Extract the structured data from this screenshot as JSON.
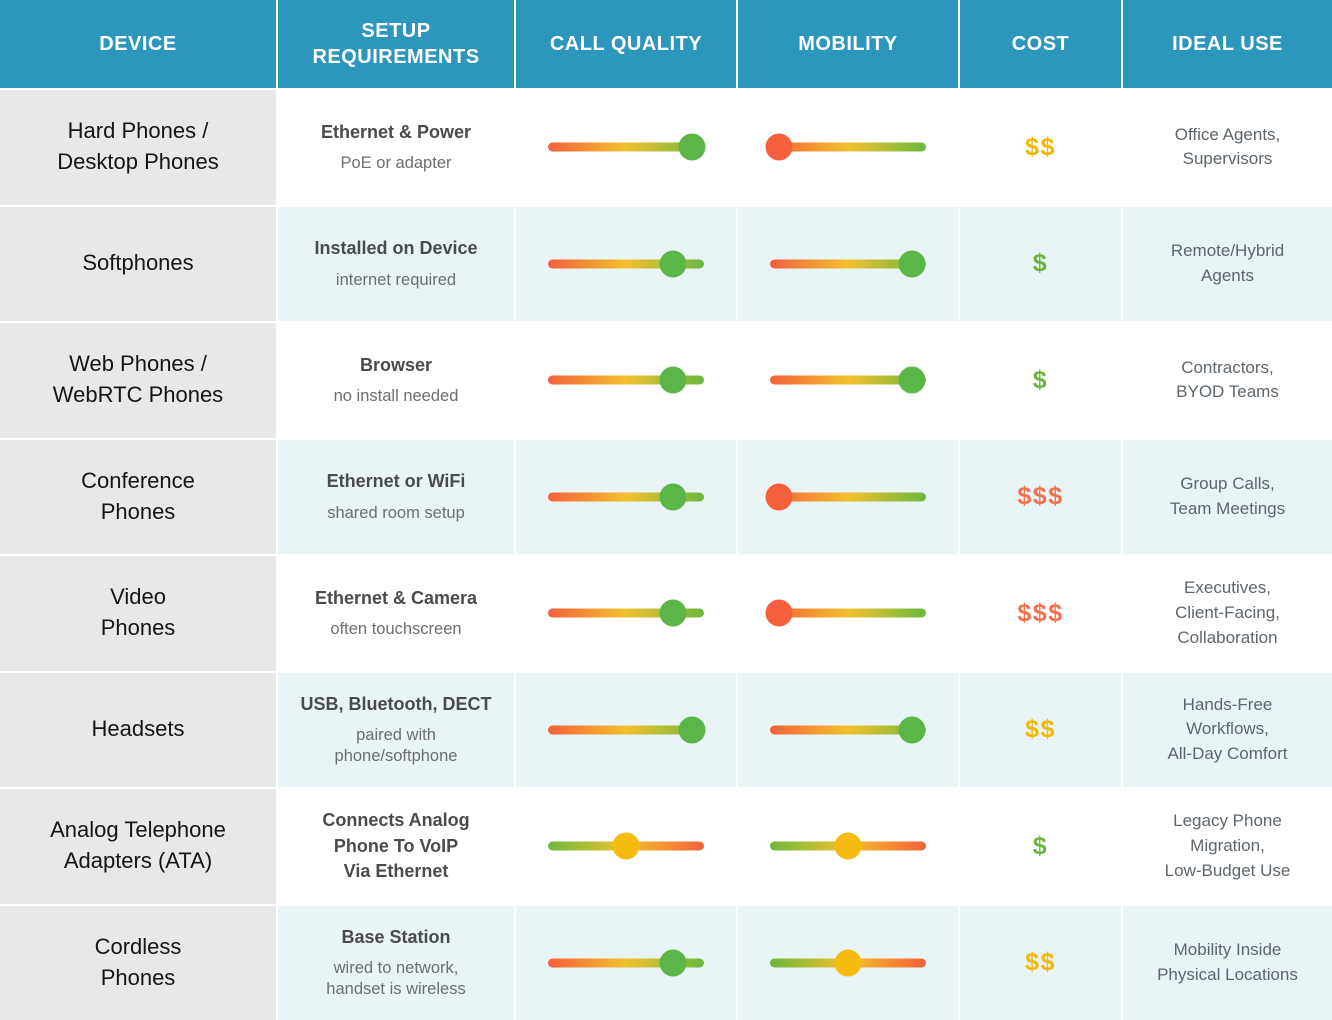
{
  "header": {
    "columns": [
      "DEVICE",
      "SETUP\nREQUIREMENTS",
      "CALL QUALITY",
      "MOBILITY",
      "COST",
      "IDEAL USE"
    ]
  },
  "colors": {
    "header_bg": "#2D96BD",
    "device_col_bg": "#E8E8E8",
    "row_bg": "#FFFFFF",
    "row_alt_bg": "#E9F4F7",
    "gradient_red": "#F4603C",
    "gradient_yellow": "#F2C12E",
    "gradient_green": "#6CB83F",
    "dot_green": "#5BB647",
    "dot_red": "#F4603C",
    "dot_yellow": "#F6BB0F",
    "cost_gold": "#F5B800",
    "cost_green": "#6CB33F",
    "cost_red": "#F4714D"
  },
  "rows": [
    {
      "device": "Hard Phones /\nDesktop Phones",
      "setup_main": "Ethernet & Power",
      "setup_sub": "PoE or adapter",
      "call_quality": {
        "pct": 92,
        "dot": "green",
        "reversed": false
      },
      "mobility": {
        "pct": 6,
        "dot": "red",
        "reversed": false
      },
      "cost": {
        "symbols": "$$",
        "color": "gold"
      },
      "ideal_use": "Office Agents,\nSupervisors",
      "shaded": false
    },
    {
      "device": "Softphones",
      "setup_main": "Installed on Device",
      "setup_sub": "internet required",
      "call_quality": {
        "pct": 80,
        "dot": "green",
        "reversed": false
      },
      "mobility": {
        "pct": 91,
        "dot": "green",
        "reversed": false
      },
      "cost": {
        "symbols": "$",
        "color": "green"
      },
      "ideal_use": "Remote/Hybrid\nAgents",
      "shaded": true
    },
    {
      "device": "Web Phones /\nWebRTC Phones",
      "setup_main": "Browser",
      "setup_sub": "no install needed",
      "call_quality": {
        "pct": 80,
        "dot": "green",
        "reversed": false
      },
      "mobility": {
        "pct": 91,
        "dot": "green",
        "reversed": false
      },
      "cost": {
        "symbols": "$",
        "color": "green"
      },
      "ideal_use": "Contractors,\nBYOD Teams",
      "shaded": false
    },
    {
      "device": "Conference\nPhones",
      "setup_main": "Ethernet or WiFi",
      "setup_sub": "shared room setup",
      "call_quality": {
        "pct": 80,
        "dot": "green",
        "reversed": false
      },
      "mobility": {
        "pct": 6,
        "dot": "red",
        "reversed": false
      },
      "cost": {
        "symbols": "$$$",
        "color": "red"
      },
      "ideal_use": "Group Calls,\nTeam Meetings",
      "shaded": true
    },
    {
      "device": "Video\nPhones",
      "setup_main": "Ethernet & Camera",
      "setup_sub": "often touchscreen",
      "call_quality": {
        "pct": 80,
        "dot": "green",
        "reversed": false
      },
      "mobility": {
        "pct": 6,
        "dot": "red",
        "reversed": false
      },
      "cost": {
        "symbols": "$$$",
        "color": "red"
      },
      "ideal_use": "Executives,\nClient-Facing,\nCollaboration",
      "shaded": false
    },
    {
      "device": "Headsets",
      "setup_main": "USB, Bluetooth, DECT",
      "setup_sub": "paired with\nphone/softphone",
      "call_quality": {
        "pct": 92,
        "dot": "green",
        "reversed": false
      },
      "mobility": {
        "pct": 91,
        "dot": "green",
        "reversed": false
      },
      "cost": {
        "symbols": "$$",
        "color": "gold"
      },
      "ideal_use": "Hands-Free\nWorkflows,\nAll-Day Comfort",
      "shaded": true
    },
    {
      "device": "Analog Telephone\nAdapters (ATA)",
      "setup_main": "Connects Analog\nPhone To VoIP\nVia Ethernet",
      "setup_sub": "",
      "call_quality": {
        "pct": 50,
        "dot": "yellow",
        "reversed": true
      },
      "mobility": {
        "pct": 50,
        "dot": "yellow",
        "reversed": true
      },
      "cost": {
        "symbols": "$",
        "color": "green"
      },
      "ideal_use": "Legacy Phone\nMigration,\nLow-Budget Use",
      "shaded": false
    },
    {
      "device": "Cordless\nPhones",
      "setup_main": "Base Station",
      "setup_sub": "wired to network,\nhandset is wireless",
      "call_quality": {
        "pct": 80,
        "dot": "green",
        "reversed": false
      },
      "mobility": {
        "pct": 50,
        "dot": "yellow",
        "reversed": true
      },
      "cost": {
        "symbols": "$$",
        "color": "gold"
      },
      "ideal_use": "Mobility Inside\nPhysical Locations",
      "shaded": true
    }
  ],
  "chart_data": {
    "type": "table",
    "columns": [
      "Device",
      "Setup Requirements",
      "Call Quality (0-100 slider)",
      "Mobility (0-100 slider)",
      "Cost ($ count)",
      "Ideal Use"
    ],
    "rows": [
      {
        "device": "Hard Phones / Desktop Phones",
        "setup": "Ethernet & Power — PoE or adapter",
        "call_quality_pct": 92,
        "mobility_pct": 6,
        "cost_level": 2,
        "ideal_use": "Office Agents, Supervisors"
      },
      {
        "device": "Softphones",
        "setup": "Installed on Device — internet required",
        "call_quality_pct": 80,
        "mobility_pct": 91,
        "cost_level": 1,
        "ideal_use": "Remote/Hybrid Agents"
      },
      {
        "device": "Web Phones / WebRTC Phones",
        "setup": "Browser — no install needed",
        "call_quality_pct": 80,
        "mobility_pct": 91,
        "cost_level": 1,
        "ideal_use": "Contractors, BYOD Teams"
      },
      {
        "device": "Conference Phones",
        "setup": "Ethernet or WiFi — shared room setup",
        "call_quality_pct": 80,
        "mobility_pct": 6,
        "cost_level": 3,
        "ideal_use": "Group Calls, Team Meetings"
      },
      {
        "device": "Video Phones",
        "setup": "Ethernet & Camera — often touchscreen",
        "call_quality_pct": 80,
        "mobility_pct": 6,
        "cost_level": 3,
        "ideal_use": "Executives, Client-Facing, Collaboration"
      },
      {
        "device": "Headsets",
        "setup": "USB, Bluetooth, DECT — paired with phone/softphone",
        "call_quality_pct": 92,
        "mobility_pct": 91,
        "cost_level": 2,
        "ideal_use": "Hands-Free Workflows, All-Day Comfort"
      },
      {
        "device": "Analog Telephone Adapters (ATA)",
        "setup": "Connects Analog Phone To VoIP Via Ethernet",
        "call_quality_pct": 50,
        "mobility_pct": 50,
        "cost_level": 1,
        "ideal_use": "Legacy Phone Migration, Low-Budget Use"
      },
      {
        "device": "Cordless Phones",
        "setup": "Base Station — wired to network, handset is wireless",
        "call_quality_pct": 80,
        "mobility_pct": 50,
        "cost_level": 2,
        "ideal_use": "Mobility Inside Physical Locations"
      }
    ],
    "legend_position": "none",
    "grid": false
  }
}
